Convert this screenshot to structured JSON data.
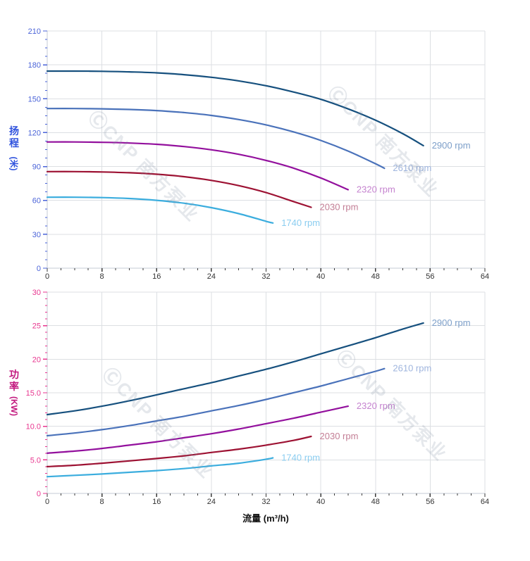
{
  "watermark_text": "ⒸCNP 南方泵业",
  "x_axis_title": "流量 (m³/h)",
  "head_axis": {
    "chars": "扬程",
    "unit": "(米)"
  },
  "power_axis": {
    "chars": "功率",
    "unit": "(KW)"
  },
  "chart_data": [
    {
      "type": "line",
      "id": "head-chart",
      "title": "",
      "xlabel": "流量 (m³/h)",
      "ylabel": "扬程(米)",
      "xlim": [
        0,
        64
      ],
      "ylim": [
        0,
        210
      ],
      "x_major": 8,
      "x_minor": 2,
      "y_minor": 7.5,
      "grid": true,
      "legend_position": "curve-end-labels",
      "x_tick_labels": [
        "0",
        "8",
        "16",
        "24",
        "32",
        "40",
        "48",
        "56",
        "64"
      ],
      "y_tick_labels": [
        [
          0,
          "0"
        ],
        [
          30,
          "30"
        ],
        [
          60,
          "60"
        ],
        [
          90,
          "90"
        ],
        [
          120,
          "120"
        ],
        [
          150,
          "150"
        ],
        [
          180,
          "180"
        ],
        [
          210,
          "210"
        ]
      ],
      "y_axis_color": "#4a63d8",
      "x_tick_color": "#3a3a3a",
      "x_label_color": "#333333",
      "grid_color": "#dcdfe3",
      "axis_line_color": "#c6cbd4",
      "series": [
        {
          "name": "2900 rpm",
          "color": "#16507e",
          "label_color": "#7d9fc9",
          "points": [
            [
              0,
              174.5
            ],
            [
              4,
              174.5
            ],
            [
              8,
              174.3
            ],
            [
              12,
              173.8
            ],
            [
              16,
              172.9
            ],
            [
              20,
              171.3
            ],
            [
              24,
              169
            ],
            [
              28,
              165.8
            ],
            [
              32,
              161.5
            ],
            [
              36,
              156
            ],
            [
              40,
              149.5
            ],
            [
              44,
              141
            ],
            [
              48,
              131
            ],
            [
              52,
              119
            ],
            [
              55,
              108.5
            ]
          ]
        },
        {
          "name": "2610 rpm",
          "color": "#4a72ba",
          "label_color": "#9fb5de",
          "points": [
            [
              0,
              141.3
            ],
            [
              4,
              141.3
            ],
            [
              8,
              141.1
            ],
            [
              12,
              140.5
            ],
            [
              16,
              139.5
            ],
            [
              20,
              137.8
            ],
            [
              24,
              135.2
            ],
            [
              28,
              131.6
            ],
            [
              32,
              126.9
            ],
            [
              36,
              120.7
            ],
            [
              40,
              113.1
            ],
            [
              44,
              103.7
            ],
            [
              48,
              92.5
            ],
            [
              49.3,
              88.4
            ]
          ]
        },
        {
          "name": "2320 rpm",
          "color": "#93109d",
          "label_color": "#c583cf",
          "points": [
            [
              0,
              111.7
            ],
            [
              4,
              111.7
            ],
            [
              8,
              111.4
            ],
            [
              12,
              110.8
            ],
            [
              16,
              109.7
            ],
            [
              20,
              107.7
            ],
            [
              24,
              104.8
            ],
            [
              28,
              100.8
            ],
            [
              32,
              95.4
            ],
            [
              36,
              88.6
            ],
            [
              40,
              79.9
            ],
            [
              44,
              69.5
            ]
          ]
        },
        {
          "name": "2030 rpm",
          "color": "#9d1233",
          "label_color": "#c37e95",
          "points": [
            [
              0,
              85.5
            ],
            [
              4,
              85.5
            ],
            [
              8,
              85.2
            ],
            [
              12,
              84.5
            ],
            [
              16,
              83.2
            ],
            [
              20,
              81
            ],
            [
              24,
              77.7
            ],
            [
              28,
              73.1
            ],
            [
              32,
              66.9
            ],
            [
              36,
              59
            ],
            [
              38.6,
              53.9
            ]
          ]
        },
        {
          "name": "1740 rpm",
          "color": "#3badde",
          "label_color": "#8bcdf0",
          "points": [
            [
              0,
              62.8
            ],
            [
              4,
              62.8
            ],
            [
              8,
              62.5
            ],
            [
              12,
              61.7
            ],
            [
              16,
              60.1
            ],
            [
              20,
              57.5
            ],
            [
              24,
              53.6
            ],
            [
              28,
              48.3
            ],
            [
              32,
              41.5
            ],
            [
              33,
              40
            ]
          ]
        }
      ]
    },
    {
      "type": "line",
      "id": "power-chart",
      "title": "",
      "xlabel": "流量 (m³/h)",
      "ylabel": "功率(KW)",
      "xlim": [
        0,
        64
      ],
      "ylim": [
        0,
        30
      ],
      "x_major": 8,
      "x_minor": 2,
      "y_minor": 1,
      "grid": true,
      "legend_position": "curve-end-labels",
      "x_tick_labels": [
        "0",
        "8",
        "16",
        "24",
        "32",
        "40",
        "48",
        "56",
        "64"
      ],
      "y_tick_labels": [
        [
          0,
          "0"
        ],
        [
          5,
          "5.0"
        ],
        [
          10,
          "10.0"
        ],
        [
          15,
          "15.0"
        ],
        [
          20,
          "20"
        ],
        [
          25,
          "25"
        ],
        [
          30,
          "30"
        ]
      ],
      "y_axis_color": "#e8368f",
      "x_tick_color": "#3a3a3a",
      "x_label_color": "#333333",
      "grid_color": "#dcdfe3",
      "axis_line_color": "#c6cbd4",
      "series": [
        {
          "name": "2900 rpm",
          "color": "#16507e",
          "label_color": "#7d9fc9",
          "points": [
            [
              0,
              11.75
            ],
            [
              4,
              12.3
            ],
            [
              8,
              13
            ],
            [
              12,
              13.8
            ],
            [
              16,
              14.7
            ],
            [
              20,
              15.6
            ],
            [
              24,
              16.5
            ],
            [
              28,
              17.5
            ],
            [
              32,
              18.5
            ],
            [
              36,
              19.6
            ],
            [
              40,
              20.8
            ],
            [
              44,
              22
            ],
            [
              48,
              23.2
            ],
            [
              52,
              24.5
            ],
            [
              55,
              25.4
            ]
          ]
        },
        {
          "name": "2610 rpm",
          "color": "#4a72ba",
          "label_color": "#9fb5de",
          "points": [
            [
              0,
              8.6
            ],
            [
              4,
              9
            ],
            [
              8,
              9.5
            ],
            [
              12,
              10.1
            ],
            [
              16,
              10.8
            ],
            [
              20,
              11.5
            ],
            [
              24,
              12.3
            ],
            [
              28,
              13.1
            ],
            [
              32,
              14
            ],
            [
              36,
              15
            ],
            [
              40,
              16
            ],
            [
              44,
              17.1
            ],
            [
              48,
              18.2
            ],
            [
              49.3,
              18.6
            ]
          ]
        },
        {
          "name": "2320 rpm",
          "color": "#93109d",
          "label_color": "#c583cf",
          "points": [
            [
              0,
              6
            ],
            [
              4,
              6.3
            ],
            [
              8,
              6.7
            ],
            [
              12,
              7.2
            ],
            [
              16,
              7.7
            ],
            [
              20,
              8.3
            ],
            [
              24,
              8.9
            ],
            [
              28,
              9.6
            ],
            [
              32,
              10.4
            ],
            [
              36,
              11.2
            ],
            [
              40,
              12.1
            ],
            [
              44,
              13
            ]
          ]
        },
        {
          "name": "2030 rpm",
          "color": "#9d1233",
          "label_color": "#c37e95",
          "points": [
            [
              0,
              4
            ],
            [
              4,
              4.2
            ],
            [
              8,
              4.5
            ],
            [
              12,
              4.85
            ],
            [
              16,
              5.2
            ],
            [
              20,
              5.6
            ],
            [
              24,
              6.1
            ],
            [
              28,
              6.6
            ],
            [
              32,
              7.2
            ],
            [
              36,
              7.9
            ],
            [
              38.6,
              8.5
            ]
          ]
        },
        {
          "name": "1740 rpm",
          "color": "#3badde",
          "label_color": "#8bcdf0",
          "points": [
            [
              0,
              2.5
            ],
            [
              4,
              2.7
            ],
            [
              8,
              2.9
            ],
            [
              12,
              3.15
            ],
            [
              16,
              3.4
            ],
            [
              20,
              3.7
            ],
            [
              24,
              4.1
            ],
            [
              28,
              4.5
            ],
            [
              32,
              5.1
            ],
            [
              33,
              5.3
            ]
          ]
        }
      ]
    }
  ]
}
